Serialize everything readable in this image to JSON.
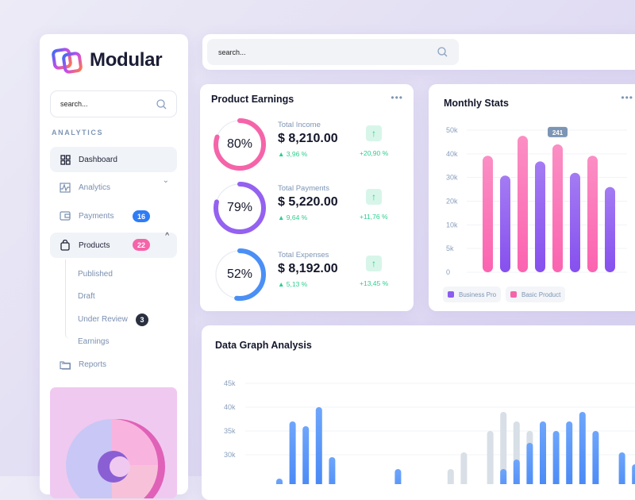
{
  "brand": {
    "name": "Modular"
  },
  "sidebar": {
    "search_placeholder": "search...",
    "section": "ANALYTICS",
    "items": [
      {
        "label": "Dashboard",
        "icon": "grid-icon"
      },
      {
        "label": "Analytics",
        "icon": "chart-icon"
      },
      {
        "label": "Payments",
        "icon": "wallet-icon",
        "badge": "16",
        "badge_color": "#2f7cf6"
      },
      {
        "label": "Products",
        "icon": "bag-icon",
        "badge": "22",
        "badge_color": "#f564a9"
      },
      {
        "label": "Reports",
        "icon": "folder-icon"
      }
    ],
    "subitems": [
      {
        "label": "Published"
      },
      {
        "label": "Draft"
      },
      {
        "label": "Under Review",
        "badge": "3"
      },
      {
        "label": "Earnings"
      }
    ]
  },
  "topbar": {
    "search_placeholder": "search..."
  },
  "earnings": {
    "title": "Product Earnings",
    "rows": [
      {
        "percent": 80,
        "percent_label": "80%",
        "label": "Total Income",
        "amount": "$ 8,210.00",
        "change": "▲ 3,96 %",
        "trend": "+20,90 %",
        "color": "#f564a9"
      },
      {
        "percent": 79,
        "percent_label": "79%",
        "label": "Total Payments",
        "amount": "$ 5,220.00",
        "change": "▲ 9,64 %",
        "trend": "+11,76 %",
        "color": "#9461f0"
      },
      {
        "percent": 52,
        "percent_label": "52%",
        "label": "Total Expenses",
        "amount": "$ 8,192.00",
        "change": "▲ 5,13 %",
        "trend": "+13,45 %",
        "color": "#4a8ff5"
      }
    ]
  },
  "chart_data": [
    {
      "type": "bar",
      "title": "Monthly Stats",
      "yticks": [
        "0",
        "5k",
        "10k",
        "20k",
        "30k",
        "40k",
        "50k"
      ],
      "tooltip": "241",
      "series": [
        {
          "name": "Business Pro",
          "color": "#8b5cf0"
        },
        {
          "name": "Basic Product",
          "color": "#f564a9"
        }
      ],
      "bars": [
        {
          "series": "Basic Product",
          "value": 41
        },
        {
          "series": "Business Pro",
          "value": 34
        },
        {
          "series": "Basic Product",
          "value": 48
        },
        {
          "series": "Business Pro",
          "value": 39
        },
        {
          "series": "Basic Product",
          "value": 45
        },
        {
          "series": "Business Pro",
          "value": 35
        },
        {
          "series": "Basic Product",
          "value": 41
        },
        {
          "series": "Business Pro",
          "value": 30
        }
      ]
    },
    {
      "type": "bar",
      "title": "Data Graph Analysis",
      "yticks": [
        "30k",
        "35k",
        "40k",
        "45k"
      ],
      "ylim": [
        25,
        45
      ],
      "blue": [
        25,
        37,
        36,
        40,
        29.5,
        null,
        null,
        null,
        null,
        27,
        null,
        null,
        null,
        null,
        null,
        null,
        null,
        27,
        29,
        32.5,
        37,
        35,
        37,
        39,
        35,
        null,
        30.5,
        28
      ],
      "gray": [
        null,
        null,
        null,
        null,
        null,
        null,
        null,
        null,
        null,
        null,
        null,
        null,
        null,
        27,
        30.5,
        null,
        35,
        39,
        37,
        35,
        null,
        null,
        null,
        null,
        null,
        null,
        null,
        null
      ]
    }
  ]
}
